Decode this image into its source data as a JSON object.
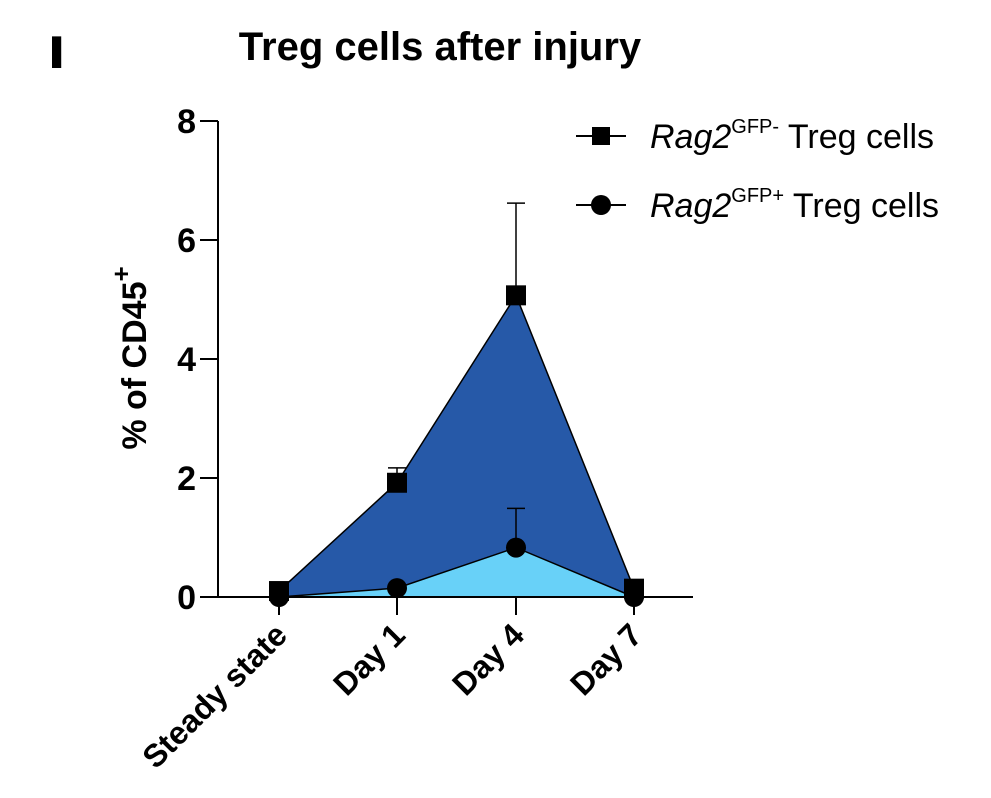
{
  "panel_mark": "▌",
  "chart_data": {
    "type": "area",
    "title": "Treg cells  after injury",
    "ylabel": "% of CD45",
    "ylabel_superscript": "+",
    "xlabel": "",
    "categories": [
      "Steady state",
      "Day 1",
      "Day 4",
      "Day 7"
    ],
    "ylim": [
      0,
      8
    ],
    "yticks": [
      0,
      2,
      4,
      6,
      8
    ],
    "grid": false,
    "legend_position": "top-right",
    "series": [
      {
        "name_italic": "Rag2",
        "name_superscript": "GFP-",
        "name_suffix": " Treg cells",
        "marker": "square",
        "values": [
          0.1,
          1.92,
          5.07,
          0.14
        ],
        "error_upper": [
          0.1,
          2.17,
          6.62,
          0.14
        ],
        "fill_color": "#2659a8"
      },
      {
        "name_italic": "Rag2",
        "name_superscript": "GFP+",
        "name_suffix": " Treg cells",
        "marker": "circle",
        "values": [
          0.0,
          0.15,
          0.83,
          0.0
        ],
        "error_upper": [
          0.0,
          0.15,
          1.49,
          0.0
        ],
        "fill_color": "#68d1f8"
      }
    ]
  }
}
